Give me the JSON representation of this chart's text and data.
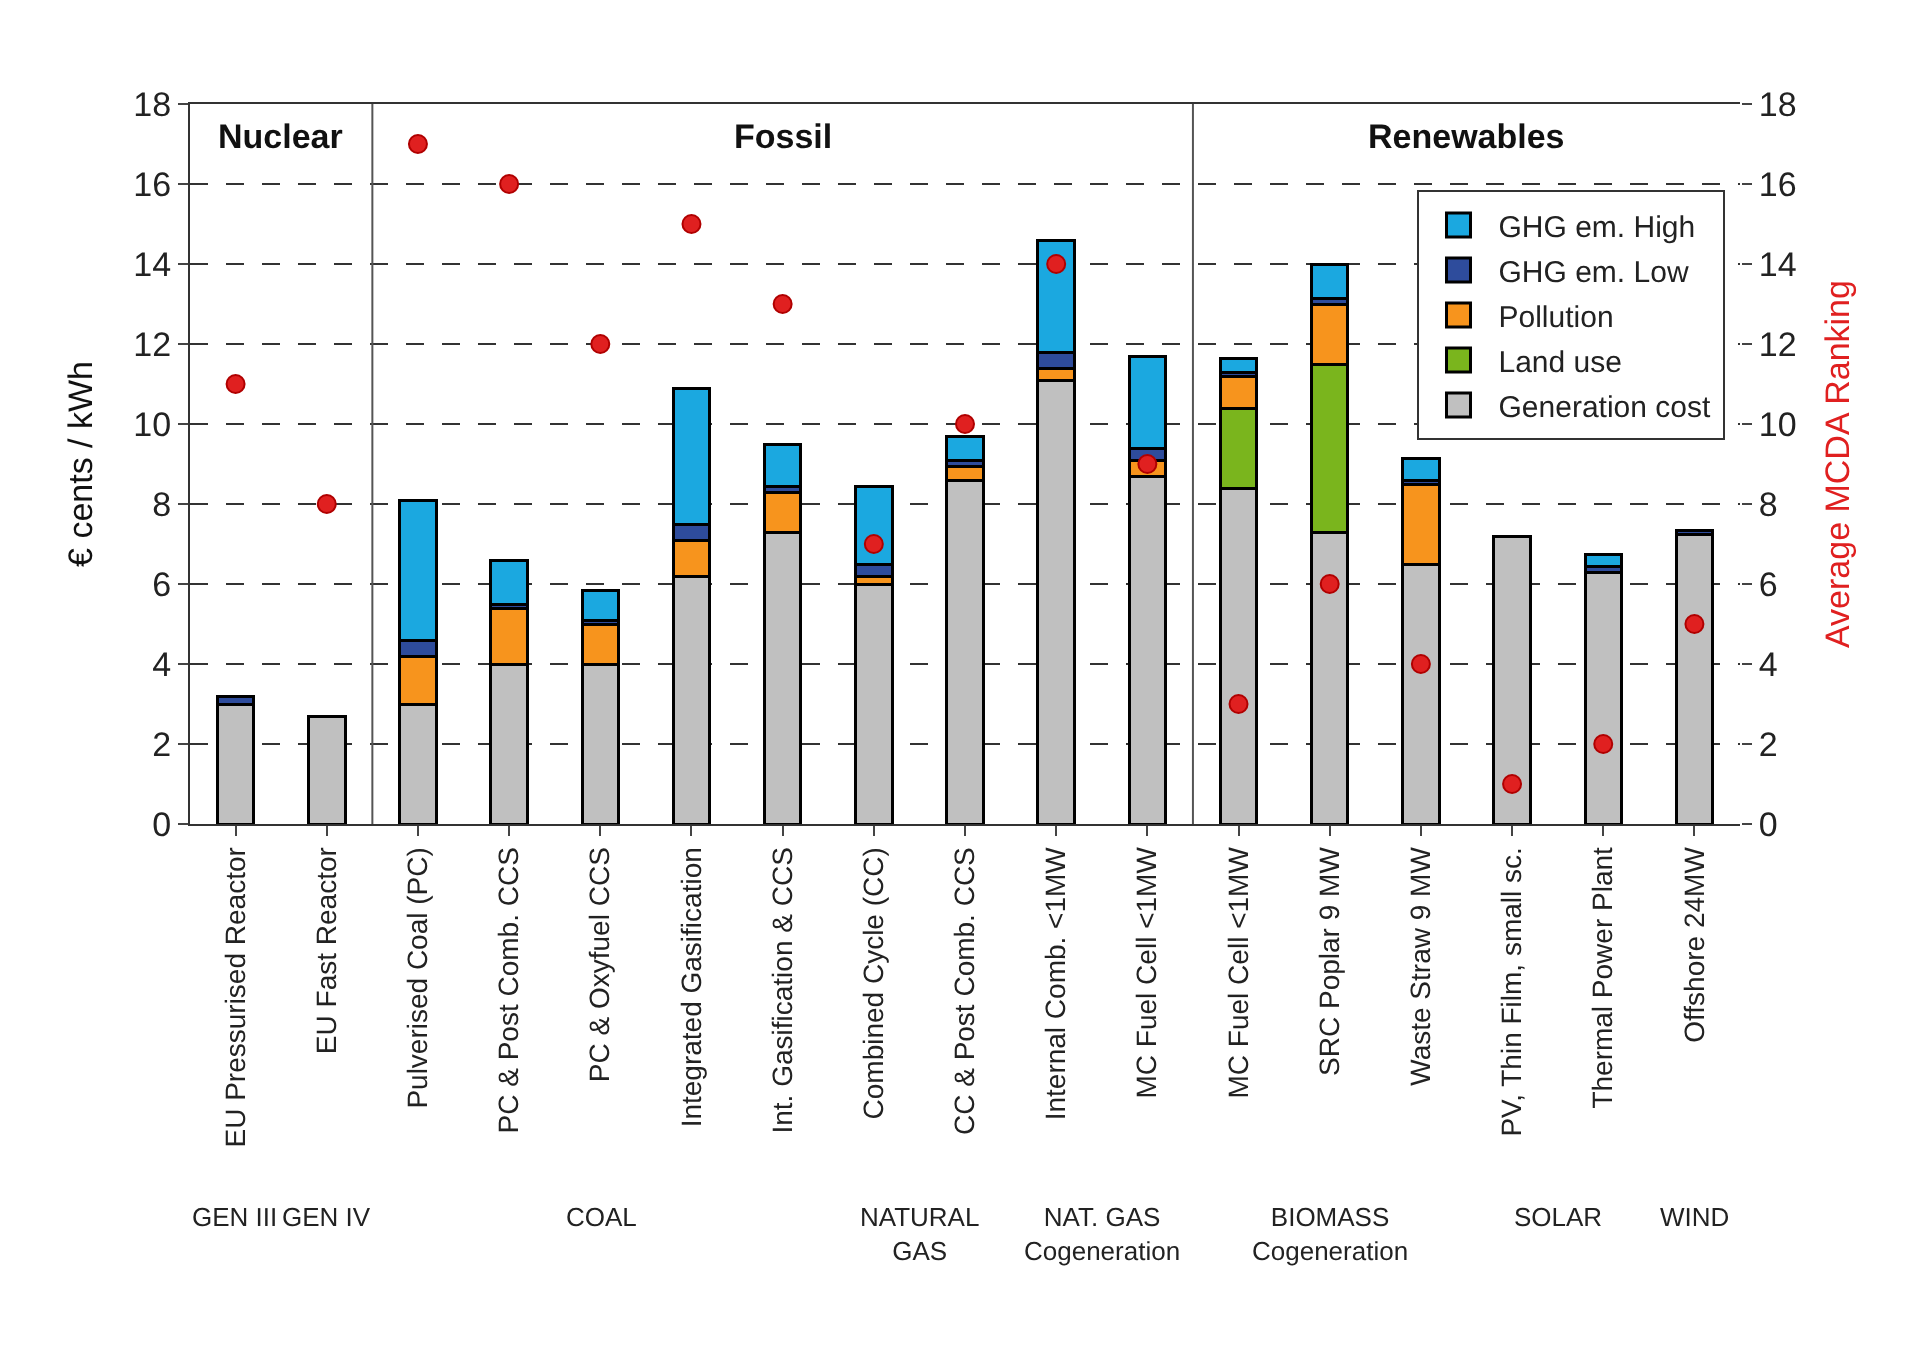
{
  "chart_data": {
    "type": "bar",
    "stacked": true,
    "ylabel": "€ cents / kWh",
    "y2label": "Average MCDA Ranking",
    "categories": [
      "EU Pressurised Reactor",
      "EU Fast Reactor",
      "Pulverised Coal (PC)",
      "PC & Post Comb. CCS",
      "PC & Oxyfuel CCS",
      "Integrated Gasification",
      "Int. Gasification & CCS",
      "Combined Cycle (CC)",
      "CC & Post Comb. CCS",
      "Internal Comb. <1MW",
      "MC Fuel Cell <1MW",
      "MC Fuel Cell <1MW",
      "SRC Poplar 9 MW",
      "Waste Straw 9 MW",
      "PV, Thin Film, small sc.",
      "Thermal Power Plant",
      "Offshore 24MW"
    ],
    "series": [
      {
        "name": "Generation cost",
        "color": "#c0c0c0",
        "values": [
          3.0,
          2.7,
          3.0,
          4.0,
          4.0,
          6.2,
          7.3,
          6.0,
          8.6,
          11.1,
          8.7,
          8.4,
          7.3,
          6.5,
          7.2,
          6.3,
          7.25
        ]
      },
      {
        "name": "Land use",
        "color": "#7ab51d",
        "values": [
          null,
          null,
          null,
          null,
          null,
          null,
          null,
          null,
          null,
          null,
          null,
          2.0,
          4.2,
          null,
          null,
          null,
          null
        ]
      },
      {
        "name": "Pollution",
        "color": "#f7941d",
        "values": [
          null,
          null,
          1.2,
          1.4,
          1.0,
          0.9,
          1.0,
          0.2,
          0.35,
          0.3,
          0.4,
          0.8,
          1.5,
          2.0,
          null,
          null,
          null
        ]
      },
      {
        "name": "GHG em. Low",
        "color": "#2e4c9c",
        "values": [
          0.2,
          null,
          0.4,
          0.1,
          0.1,
          0.4,
          0.15,
          0.3,
          0.15,
          0.4,
          0.3,
          0.1,
          0.15,
          0.1,
          null,
          0.15,
          0.1
        ]
      },
      {
        "name": "GHG em. High",
        "color": "#1ba8e0",
        "values": [
          null,
          null,
          3.5,
          1.1,
          0.75,
          3.4,
          1.05,
          1.95,
          0.6,
          2.8,
          2.3,
          0.35,
          0.85,
          0.55,
          null,
          0.3,
          null
        ]
      },
      {
        "type": "scatter",
        "axis": "y2",
        "color": "#e02020",
        "marker": "circle",
        "values": [
          11,
          8,
          17,
          16,
          12,
          15,
          13,
          7,
          10,
          14,
          9,
          3,
          6,
          4,
          1,
          2,
          5
        ]
      }
    ],
    "ylim": [
      0,
      18
    ],
    "yticks": [
      0,
      2,
      4,
      6,
      8,
      10,
      12,
      14,
      16,
      18
    ],
    "y2lim": [
      0,
      18
    ],
    "y2ticks": [
      0,
      2,
      4,
      6,
      8,
      10,
      12,
      14,
      16,
      18
    ],
    "grid": "y",
    "legend": "top right",
    "annotations": [
      "Nuclear",
      "Fossil",
      "Renewables",
      "GEN III",
      "GEN IV",
      "COAL",
      "NATURAL\nGAS",
      "NAT. GAS\nCogeneration",
      "BIOMASS\nCogeneration",
      "SOLAR",
      "WIND"
    ]
  }
}
